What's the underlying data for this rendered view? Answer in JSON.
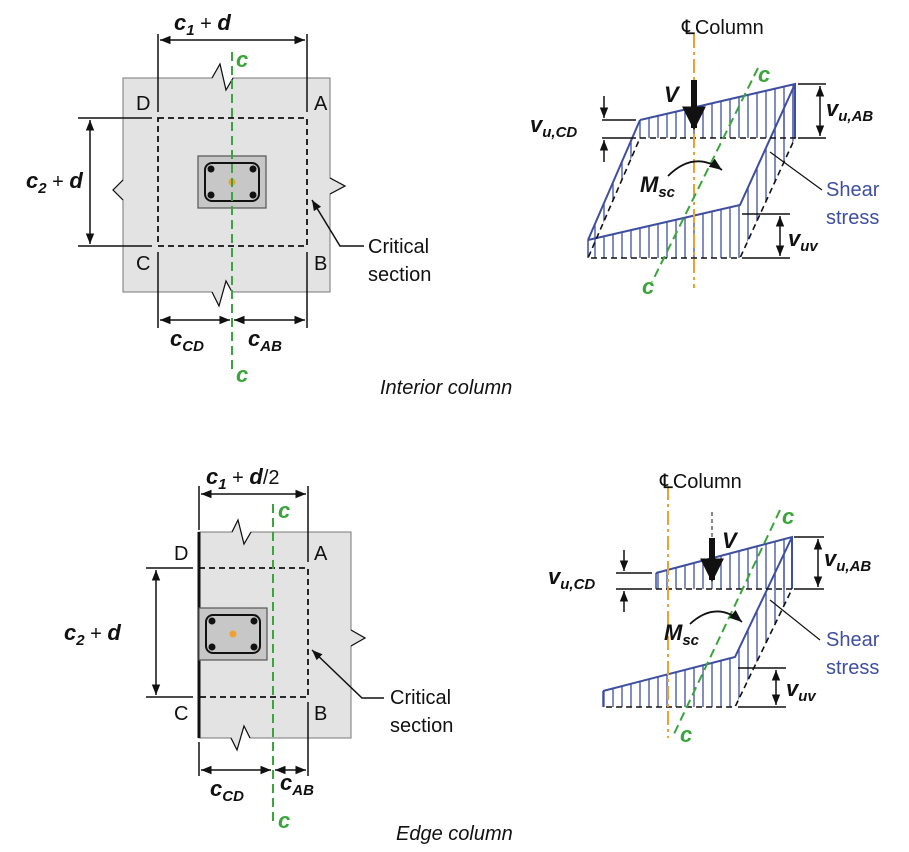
{
  "interior": {
    "caption": "Interior column",
    "dim_top": {
      "c": "c",
      "sub": "1",
      "plus": " + ",
      "d": "d"
    },
    "dim_left": {
      "c": "c",
      "sub": "2",
      "plus": " + ",
      "d": "d"
    },
    "dim_cd": {
      "c": "c",
      "sub": "CD"
    },
    "dim_ab": {
      "c": "c",
      "sub": "AB"
    },
    "corners": {
      "a": "A",
      "b": "B",
      "c": "C",
      "d": "D"
    },
    "axis_label": "c",
    "critical_1": "Critical",
    "critical_2": "section",
    "column_label": "Column",
    "centerline_symbol": "℄",
    "v_label": "V",
    "m_label": {
      "m": "M",
      "sub": "sc"
    },
    "vu_cd": {
      "v": "v",
      "sub": "u,CD"
    },
    "vu_ab": {
      "v": "v",
      "sub": "u,AB"
    },
    "vuv": {
      "v": "v",
      "sub": "uv"
    },
    "shear_1": "Shear",
    "shear_2": "stress"
  },
  "edge": {
    "caption": "Edge column",
    "dim_top": {
      "c": "c",
      "sub": "1",
      "plus": " + ",
      "d": "d",
      "tail": "/2"
    },
    "dim_left": {
      "c": "c",
      "sub": "2",
      "plus": " + ",
      "d": "d"
    },
    "dim_cd": {
      "c": "c",
      "sub": "CD"
    },
    "dim_ab": {
      "c": "c",
      "sub": "AB"
    },
    "corners": {
      "a": "A",
      "b": "B",
      "c": "C",
      "d": "D"
    },
    "axis_label": "c",
    "critical_1": "Critical",
    "critical_2": "section",
    "column_label": "Column",
    "centerline_symbol": "℄",
    "v_label": "V",
    "m_label": {
      "m": "M",
      "sub": "sc"
    },
    "vu_cd": {
      "v": "v",
      "sub": "u,CD"
    },
    "vu_ab": {
      "v": "v",
      "sub": "u,AB"
    },
    "vuv": {
      "v": "v",
      "sub": "uv"
    },
    "shear_1": "Shear",
    "shear_2": "stress"
  },
  "colors": {
    "slab": "#e3e3e3",
    "axis": "#3aa53a",
    "centerline": "#f0a030",
    "stress": "#3e4fa0",
    "ink": "#111111"
  }
}
